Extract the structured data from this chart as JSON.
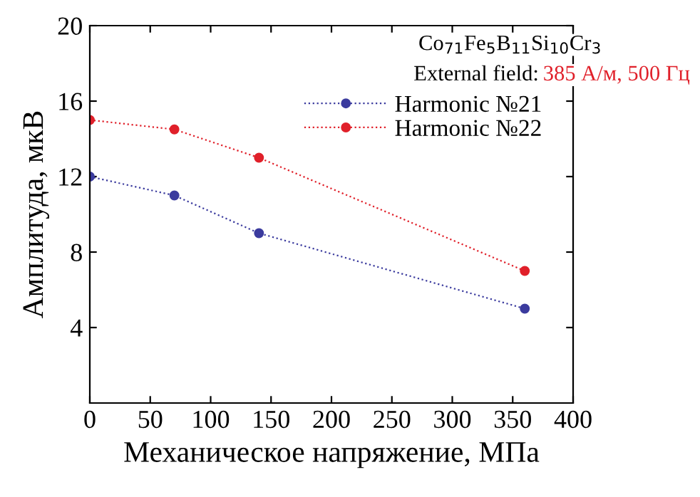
{
  "chart_data": {
    "type": "line",
    "xlabel": "Механическое напряжение, МПа",
    "ylabel": "Амплитуда, мкВ",
    "legend_title": "Co$_{71}$Fe$_{5}$B$_{11}$Si$_{10}$Cr$_{3}$",
    "annotations": [
      "External field:",
      "385 А/м, 500 Гц"
    ],
    "x": [
      0,
      70,
      140,
      360
    ],
    "series": [
      {
        "name": "Harmonic №21",
        "color": "#3b3b9e",
        "values": [
          12,
          11,
          9,
          5
        ]
      },
      {
        "name": "Harmonic №22",
        "color": "#e0202a",
        "values": [
          15,
          14.5,
          13,
          7
        ]
      }
    ],
    "xlim": [
      0,
      400
    ],
    "xticks": [
      0,
      50,
      100,
      150,
      200,
      250,
      300,
      350,
      400
    ],
    "ylim": [
      0,
      20
    ],
    "yticks": [
      4,
      8,
      12,
      16,
      20
    ],
    "grid": false,
    "legend": "top right",
    "marker": "circle",
    "line_style": "dotted"
  }
}
